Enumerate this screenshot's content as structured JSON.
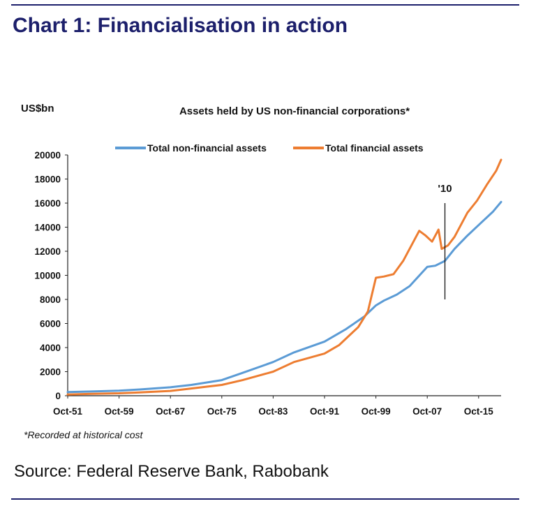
{
  "header": {
    "title": "Chart 1: Financialisation in action"
  },
  "footer": {
    "source": "Source: Federal Reserve Bank, Rabobank"
  },
  "chart_data": {
    "type": "line",
    "title": "Assets held by US non-financial corporations*",
    "ylabel": "US$bn",
    "xlabel": "",
    "footnote": "*Recorded at historical cost",
    "ylim": [
      0,
      20000
    ],
    "yticks": [
      0,
      2000,
      4000,
      6000,
      8000,
      10000,
      12000,
      14000,
      16000,
      18000,
      20000
    ],
    "xlim": [
      1951.75,
      2019.25
    ],
    "xticks": [
      {
        "x": 1951.75,
        "label": "Oct-51"
      },
      {
        "x": 1959.75,
        "label": "Oct-59"
      },
      {
        "x": 1967.75,
        "label": "Oct-67"
      },
      {
        "x": 1975.75,
        "label": "Oct-75"
      },
      {
        "x": 1983.75,
        "label": "Oct-83"
      },
      {
        "x": 1991.75,
        "label": "Oct-91"
      },
      {
        "x": 1999.75,
        "label": "Oct-99"
      },
      {
        "x": 2007.75,
        "label": "Oct-07"
      },
      {
        "x": 2015.75,
        "label": "Oct-15"
      }
    ],
    "grid": false,
    "legend_position": "top",
    "annotation": {
      "label": "'10",
      "x": 2010.5,
      "y_range": [
        8000,
        16000
      ]
    },
    "series": [
      {
        "name": "Total non-financial assets",
        "color": "#5b9bd5",
        "points": [
          [
            1951.75,
            300
          ],
          [
            1955,
            350
          ],
          [
            1959.75,
            420
          ],
          [
            1963,
            520
          ],
          [
            1967.75,
            700
          ],
          [
            1971,
            900
          ],
          [
            1975.75,
            1300
          ],
          [
            1979,
            1900
          ],
          [
            1983.75,
            2800
          ],
          [
            1987,
            3600
          ],
          [
            1991.75,
            4500
          ],
          [
            1995,
            5500
          ],
          [
            1998,
            6600
          ],
          [
            1999.75,
            7500
          ],
          [
            2001,
            7900
          ],
          [
            2003,
            8400
          ],
          [
            2005,
            9100
          ],
          [
            2007.75,
            10700
          ],
          [
            2009,
            10800
          ],
          [
            2010.5,
            11200
          ],
          [
            2012,
            12200
          ],
          [
            2014,
            13300
          ],
          [
            2016,
            14300
          ],
          [
            2018,
            15300
          ],
          [
            2019.25,
            16100
          ]
        ]
      },
      {
        "name": "Total financial assets",
        "color": "#ed7d31",
        "points": [
          [
            1951.75,
            100
          ],
          [
            1955,
            150
          ],
          [
            1959.75,
            200
          ],
          [
            1963,
            280
          ],
          [
            1967.75,
            400
          ],
          [
            1971,
            600
          ],
          [
            1975.75,
            900
          ],
          [
            1979,
            1300
          ],
          [
            1983.75,
            2000
          ],
          [
            1987,
            2800
          ],
          [
            1991.75,
            3500
          ],
          [
            1994,
            4200
          ],
          [
            1997,
            5700
          ],
          [
            1998.5,
            7000
          ],
          [
            1999.75,
            9800
          ],
          [
            2001,
            9900
          ],
          [
            2002.5,
            10100
          ],
          [
            2004,
            11200
          ],
          [
            2006.5,
            13700
          ],
          [
            2007.5,
            13300
          ],
          [
            2008.5,
            12800
          ],
          [
            2009.5,
            13800
          ],
          [
            2010,
            12200
          ],
          [
            2011,
            12500
          ],
          [
            2012,
            13200
          ],
          [
            2014,
            15200
          ],
          [
            2015.5,
            16200
          ],
          [
            2017,
            17500
          ],
          [
            2018.5,
            18700
          ],
          [
            2019.25,
            19600
          ]
        ]
      }
    ]
  }
}
